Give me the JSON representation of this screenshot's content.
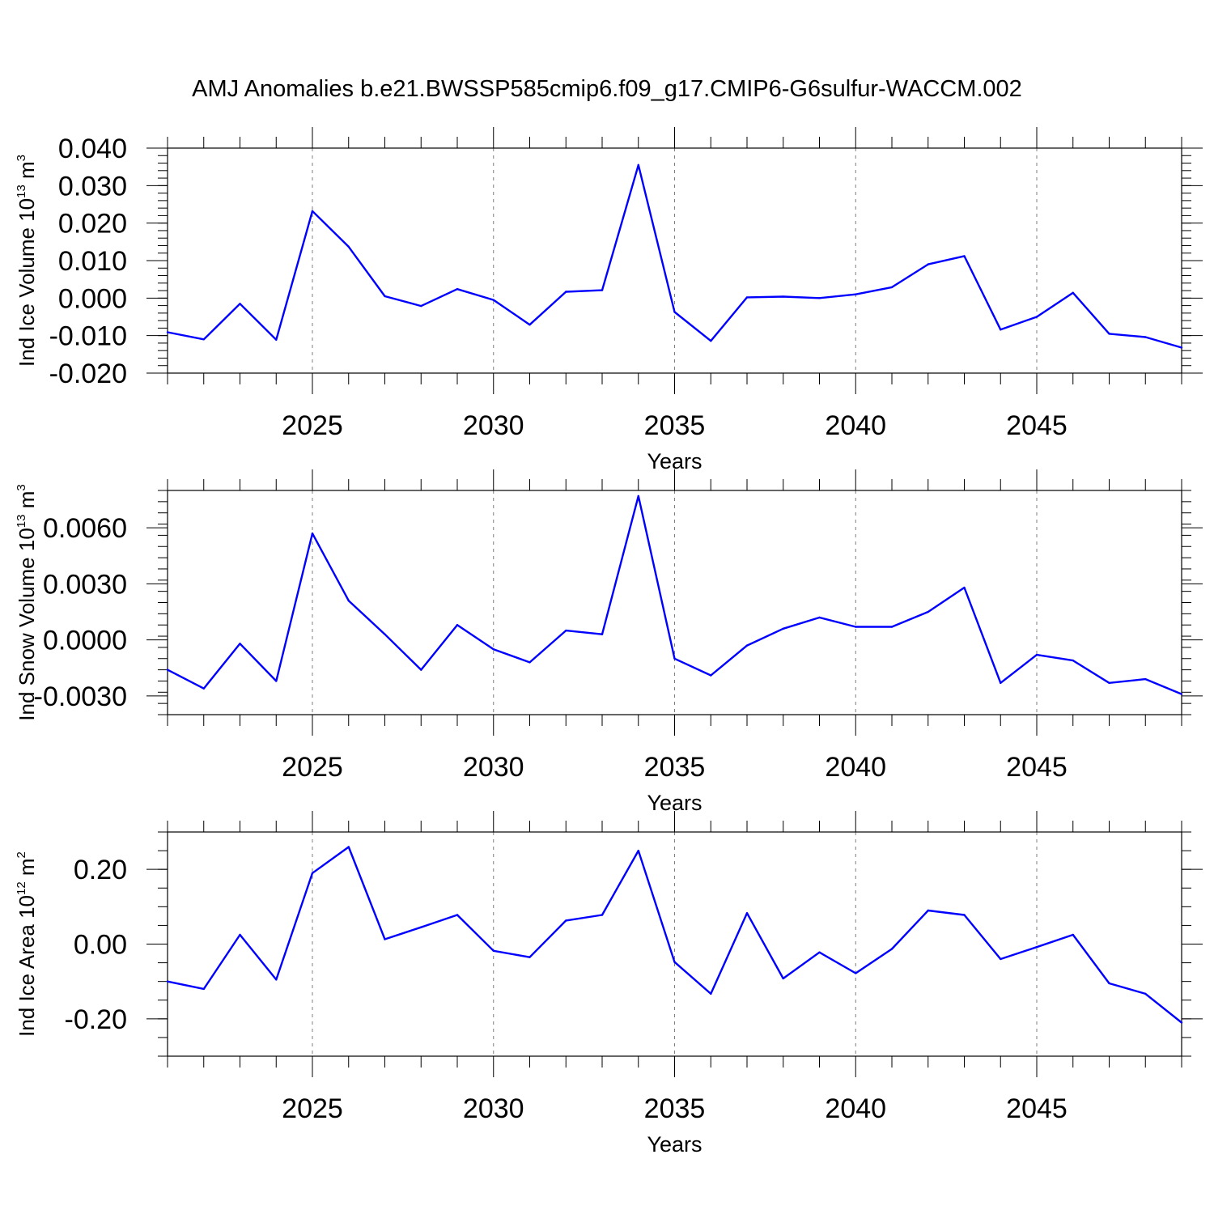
{
  "page_title": "AMJ Anomalies b.e21.BWSSP585cmip6.f09_g17.CMIP6-G6sulfur-WACCM.002",
  "colors": {
    "series": "#0000ff",
    "axis": "#000000",
    "grid": "#7f7f7f"
  },
  "chart_data": [
    {
      "type": "line",
      "title": "AMJ Anomalies b.e21.BWSSP585cmip6.f09_g17.CMIP6-G6sulfur-WACCM.002",
      "ylabel_prefix": "Ind Ice Volume 10",
      "ylabel_exp": "13",
      "ylabel_unit": " m",
      "ylabel_unit_exp": "3",
      "xlabel": "Years",
      "xlim": [
        2021,
        2049
      ],
      "ylim": [
        -0.02,
        0.04
      ],
      "yticks": [
        -0.02,
        -0.01,
        0.0,
        0.01,
        0.02,
        0.03,
        0.04
      ],
      "yticklabels": [
        "-0.020",
        "-0.010",
        "0.000",
        "0.010",
        "0.020",
        "0.030",
        "0.040"
      ],
      "yminor": 0.002,
      "xticks": [
        2025,
        2030,
        2035,
        2040,
        2045
      ],
      "xticklabels": [
        "2025",
        "2030",
        "2035",
        "2040",
        "2045"
      ],
      "grid": "vertical dashed at major x ticks",
      "x": [
        2021,
        2022,
        2023,
        2024,
        2025,
        2026,
        2027,
        2028,
        2029,
        2030,
        2031,
        2032,
        2033,
        2034,
        2035,
        2036,
        2037,
        2038,
        2039,
        2040,
        2041,
        2042,
        2043,
        2044,
        2045,
        2046,
        2047,
        2048,
        2049
      ],
      "values": [
        -0.0091,
        -0.011,
        -0.0015,
        -0.0111,
        0.0232,
        0.0137,
        0.0005,
        -0.0021,
        0.0024,
        -0.0005,
        -0.0071,
        0.0017,
        0.0021,
        0.0355,
        -0.0037,
        -0.0114,
        0.0002,
        0.0004,
        0.0,
        0.001,
        0.0029,
        0.009,
        0.0112,
        -0.0084,
        -0.005,
        0.0014,
        -0.0095,
        -0.0104,
        -0.0132
      ]
    },
    {
      "type": "line",
      "ylabel_prefix": "Ind Snow Volume 10",
      "ylabel_exp": "13",
      "ylabel_unit": " m",
      "ylabel_unit_exp": "3",
      "xlabel": "Years",
      "xlim": [
        2021,
        2049
      ],
      "ylim": [
        -0.004,
        0.008
      ],
      "yticks": [
        -0.003,
        0.0,
        0.003,
        0.006
      ],
      "yticklabels": [
        "-0.0030",
        "0.0000",
        "0.0030",
        "0.0060"
      ],
      "yminor": 0.0006,
      "xticks": [
        2025,
        2030,
        2035,
        2040,
        2045
      ],
      "xticklabels": [
        "2025",
        "2030",
        "2035",
        "2040",
        "2045"
      ],
      "grid": "vertical dashed at major x ticks",
      "x": [
        2021,
        2022,
        2023,
        2024,
        2025,
        2026,
        2027,
        2028,
        2029,
        2030,
        2031,
        2032,
        2033,
        2034,
        2035,
        2036,
        2037,
        2038,
        2039,
        2040,
        2041,
        2042,
        2043,
        2044,
        2045,
        2046,
        2047,
        2048,
        2049
      ],
      "values": [
        -0.0016,
        -0.0026,
        -0.0002,
        -0.0022,
        0.0057,
        0.0021,
        0.0003,
        -0.0016,
        0.0008,
        -0.0005,
        -0.0012,
        0.0005,
        0.0003,
        0.0077,
        -0.001,
        -0.0019,
        -0.0003,
        0.0006,
        0.0012,
        0.0007,
        0.0007,
        0.0015,
        0.0028,
        -0.0023,
        -0.0008,
        -0.0011,
        -0.0023,
        -0.0021,
        -0.0029
      ]
    },
    {
      "type": "line",
      "ylabel_prefix": "Ind Ice Area 10",
      "ylabel_exp": "12",
      "ylabel_unit": " m",
      "ylabel_unit_exp": "2",
      "xlabel": "Years",
      "xlim": [
        2021,
        2049
      ],
      "ylim": [
        -0.3,
        0.3
      ],
      "yticks": [
        -0.2,
        0.0,
        0.2
      ],
      "yticklabels": [
        "-0.20",
        "0.00",
        "0.20"
      ],
      "yminor": 0.05,
      "xticks": [
        2025,
        2030,
        2035,
        2040,
        2045
      ],
      "xticklabels": [
        "2025",
        "2030",
        "2035",
        "2040",
        "2045"
      ],
      "grid": "vertical dashed at major x ticks",
      "x": [
        2021,
        2022,
        2023,
        2024,
        2025,
        2026,
        2027,
        2028,
        2029,
        2030,
        2031,
        2032,
        2033,
        2034,
        2035,
        2036,
        2037,
        2038,
        2039,
        2040,
        2041,
        2042,
        2043,
        2044,
        2045,
        2046,
        2047,
        2048,
        2049
      ],
      "values": [
        -0.1,
        -0.12,
        0.025,
        -0.095,
        0.19,
        0.26,
        0.013,
        0.045,
        0.078,
        -0.018,
        -0.035,
        0.063,
        0.078,
        0.25,
        -0.048,
        -0.133,
        0.083,
        -0.092,
        -0.022,
        -0.078,
        -0.013,
        0.09,
        0.078,
        -0.04,
        -0.008,
        0.025,
        -0.105,
        -0.133,
        -0.21
      ]
    }
  ]
}
